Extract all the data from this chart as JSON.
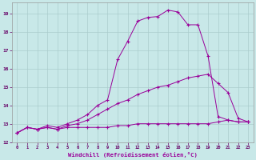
{
  "xlabel": "Windchill (Refroidissement éolien,°C)",
  "ylabel": "",
  "xlim": [
    -0.5,
    23.5
  ],
  "ylim": [
    12,
    19.6
  ],
  "yticks": [
    12,
    13,
    14,
    15,
    16,
    17,
    18,
    19
  ],
  "xticks": [
    0,
    1,
    2,
    3,
    4,
    5,
    6,
    7,
    8,
    9,
    10,
    11,
    12,
    13,
    14,
    15,
    16,
    17,
    18,
    19,
    20,
    21,
    22,
    23
  ],
  "bg_color": "#c8e8e8",
  "line_color": "#990099",
  "grid_color": "#aacccc",
  "lines": [
    {
      "x": [
        0,
        1,
        2,
        3,
        4,
        5,
        6,
        7,
        8,
        9,
        10,
        11,
        12,
        13,
        14,
        15,
        16,
        17,
        18,
        19,
        20,
        21,
        22,
        23
      ],
      "y": [
        12.5,
        12.8,
        12.7,
        12.8,
        12.7,
        12.8,
        12.8,
        12.8,
        12.8,
        12.8,
        12.9,
        12.9,
        13.0,
        13.0,
        13.0,
        13.0,
        13.0,
        13.0,
        13.0,
        13.0,
        13.1,
        13.2,
        13.1,
        13.1
      ]
    },
    {
      "x": [
        0,
        1,
        2,
        3,
        4,
        5,
        6,
        7,
        8,
        9,
        10,
        11,
        12,
        13,
        14,
        15,
        16,
        17,
        18,
        19,
        20,
        21,
        22,
        23
      ],
      "y": [
        12.5,
        12.8,
        12.7,
        12.8,
        12.7,
        12.9,
        13.0,
        13.2,
        13.5,
        13.8,
        14.1,
        14.3,
        14.6,
        14.8,
        15.0,
        15.1,
        15.3,
        15.5,
        15.6,
        15.7,
        15.2,
        14.7,
        13.3,
        13.1
      ]
    },
    {
      "x": [
        0,
        1,
        2,
        3,
        4,
        5,
        6,
        7,
        8,
        9,
        10,
        11,
        12,
        13,
        14,
        15,
        16,
        17,
        18,
        19,
        20,
        21,
        22,
        23
      ],
      "y": [
        12.5,
        12.8,
        12.7,
        12.9,
        12.8,
        13.0,
        13.2,
        13.5,
        14.0,
        14.3,
        16.5,
        17.5,
        18.6,
        18.8,
        18.85,
        19.2,
        19.1,
        18.4,
        18.4,
        16.7,
        13.4,
        13.2,
        13.1,
        13.1
      ]
    }
  ]
}
